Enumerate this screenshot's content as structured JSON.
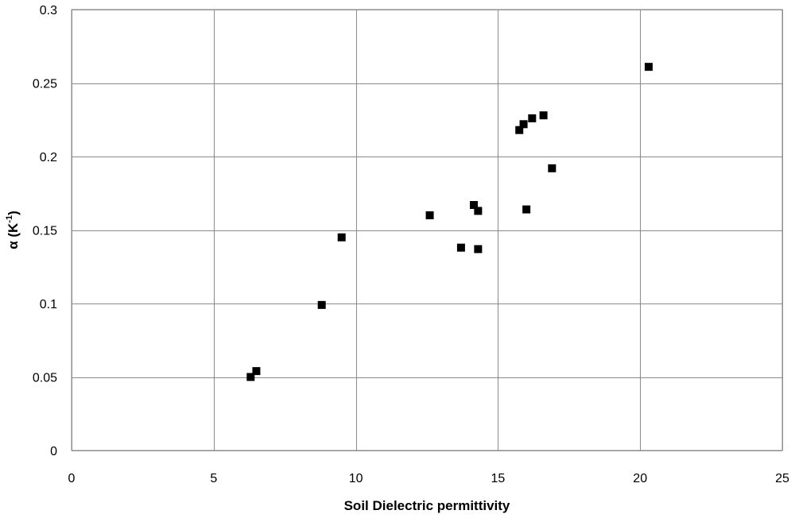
{
  "chart_data": {
    "type": "scatter",
    "title": "",
    "xlabel": "Soil Dielectric permittivity",
    "ylabel": {
      "base": "α (K",
      "sup": "-1",
      "close": ")"
    },
    "xlim": [
      0,
      25
    ],
    "ylim": [
      0,
      0.3
    ],
    "x_ticks": [
      0,
      5,
      10,
      15,
      20,
      25
    ],
    "y_ticks": [
      0,
      0.05,
      0.1,
      0.15,
      0.2,
      0.25,
      0.3
    ],
    "x_tick_labels": [
      "0",
      "5",
      "10",
      "15",
      "20",
      "25"
    ],
    "y_tick_labels": [
      "0",
      "0.05",
      "0.1",
      "0.15",
      "0.2",
      "0.25",
      "0.3"
    ],
    "grid": true,
    "legend": "none",
    "marker": "square",
    "marker_color": "#000000",
    "series": [
      {
        "points": [
          {
            "x": 6.3,
            "y": 0.05
          },
          {
            "x": 6.5,
            "y": 0.054
          },
          {
            "x": 8.8,
            "y": 0.099
          },
          {
            "x": 9.5,
            "y": 0.145
          },
          {
            "x": 12.6,
            "y": 0.16
          },
          {
            "x": 13.7,
            "y": 0.138
          },
          {
            "x": 14.15,
            "y": 0.167
          },
          {
            "x": 14.3,
            "y": 0.163
          },
          {
            "x": 14.3,
            "y": 0.137
          },
          {
            "x": 15.75,
            "y": 0.218
          },
          {
            "x": 15.9,
            "y": 0.222
          },
          {
            "x": 16.0,
            "y": 0.164
          },
          {
            "x": 16.2,
            "y": 0.226
          },
          {
            "x": 16.6,
            "y": 0.228
          },
          {
            "x": 16.9,
            "y": 0.192
          },
          {
            "x": 20.3,
            "y": 0.261
          }
        ]
      }
    ]
  }
}
